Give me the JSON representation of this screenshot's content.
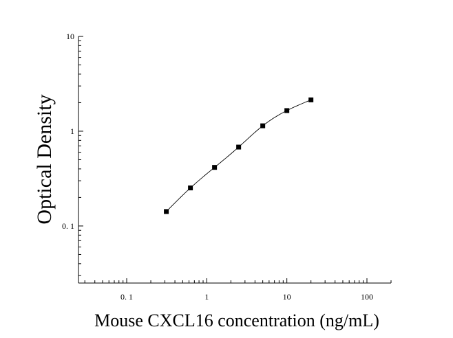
{
  "chart_data": {
    "type": "scatter",
    "title": "",
    "xlabel": "Mouse CXCL16 concentration (ng/mL)",
    "ylabel": "Optical Density",
    "x_scale": "log",
    "y_scale": "log",
    "xlim": [
      0.025,
      200
    ],
    "ylim": [
      0.025,
      10
    ],
    "x_ticks": [
      0.1,
      1,
      10,
      100
    ],
    "x_tick_labels": [
      "0. 1",
      "1",
      "10",
      "100"
    ],
    "y_ticks": [
      0.1,
      1,
      10
    ],
    "y_tick_labels": [
      "0. 1",
      "1",
      "10"
    ],
    "grid": false,
    "legend": "none",
    "series": [
      {
        "x": [
          0.3125,
          0.625,
          1.25,
          2.5,
          5,
          10,
          20
        ],
        "y": [
          0.142,
          0.252,
          0.415,
          0.68,
          1.14,
          1.65,
          2.14
        ],
        "marker": "square",
        "fit_line": true
      }
    ],
    "colors": {
      "points": "#000000",
      "curve": "#000000",
      "axes": "#000000"
    }
  }
}
